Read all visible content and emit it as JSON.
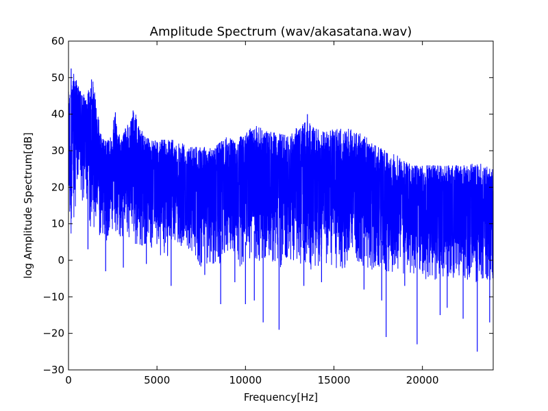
{
  "chart_data": {
    "type": "line",
    "title": "Amplitude Spectrum (wav/akasatana.wav)",
    "xlabel": "Frequency[Hz]",
    "ylabel": "log Amplitude Spectrum[dB]",
    "xlim": [
      0,
      24000
    ],
    "ylim": [
      -30,
      60
    ],
    "x_ticks": [
      0,
      5000,
      10000,
      15000,
      20000
    ],
    "x_tick_labels": [
      "0",
      "5000",
      "10000",
      "15000",
      "20000"
    ],
    "y_ticks": [
      -30,
      -20,
      -10,
      0,
      10,
      20,
      30,
      40,
      50,
      60
    ],
    "y_tick_labels": [
      "−30",
      "−20",
      "−10",
      "0",
      "10",
      "20",
      "30",
      "40",
      "50",
      "60"
    ],
    "grid": false,
    "legend": "none",
    "series": [
      {
        "color": "#0000ff",
        "envelope": {
          "x": [
            0,
            200,
            400,
            600,
            800,
            1000,
            1200,
            1400,
            1600,
            1800,
            2000,
            2200,
            2400,
            2600,
            2800,
            3000,
            3200,
            3400,
            3600,
            3800,
            4000,
            4500,
            5000,
            5500,
            6000,
            6500,
            7000,
            7500,
            8000,
            8500,
            9000,
            9500,
            10000,
            10500,
            11000,
            11500,
            12000,
            12500,
            13000,
            13500,
            14000,
            14500,
            15000,
            15500,
            16000,
            16500,
            17000,
            17500,
            18000,
            18500,
            19000,
            19500,
            20000,
            20500,
            21000,
            21500,
            22000,
            22500,
            23000,
            23500,
            24000
          ],
          "upper": [
            46,
            52,
            50,
            47,
            46,
            44,
            48,
            49,
            42,
            36,
            33,
            33,
            34,
            40,
            36,
            33,
            36,
            38,
            41,
            40,
            36,
            34,
            33,
            33,
            33,
            32,
            31,
            31,
            31,
            32,
            34,
            33,
            35,
            37,
            36,
            35,
            35,
            34,
            37,
            38,
            36,
            35,
            36,
            36,
            36,
            35,
            33,
            31,
            30,
            29,
            27,
            26,
            26,
            26,
            26,
            26,
            26,
            26,
            27,
            26,
            25
          ],
          "lower": [
            4,
            8,
            15,
            20,
            16,
            18,
            10,
            6,
            11,
            5,
            8,
            2,
            10,
            4,
            6,
            6,
            7,
            6,
            9,
            2,
            4,
            4,
            2,
            0,
            4,
            2,
            1,
            -2,
            -1,
            -2,
            2,
            -1,
            -3,
            0,
            -1,
            -1,
            -2,
            0,
            -2,
            -3,
            -2,
            -1,
            -2,
            -3,
            0,
            -1,
            -3,
            -2,
            -4,
            -3,
            -4,
            -4,
            -5,
            -6,
            -5,
            -5,
            -5,
            -6,
            -6,
            -6,
            -6
          ]
        },
        "spikes": [
          {
            "x": 1100,
            "y": 3
          },
          {
            "x": 2100,
            "y": -3
          },
          {
            "x": 3100,
            "y": -2
          },
          {
            "x": 4400,
            "y": -1
          },
          {
            "x": 5800,
            "y": -7
          },
          {
            "x": 7700,
            "y": -4
          },
          {
            "x": 8600,
            "y": -12
          },
          {
            "x": 9400,
            "y": -6
          },
          {
            "x": 10000,
            "y": -12
          },
          {
            "x": 10500,
            "y": -11
          },
          {
            "x": 11000,
            "y": -17
          },
          {
            "x": 11900,
            "y": -19
          },
          {
            "x": 13300,
            "y": -7
          },
          {
            "x": 14300,
            "y": -6
          },
          {
            "x": 16700,
            "y": -8
          },
          {
            "x": 17700,
            "y": -11
          },
          {
            "x": 17950,
            "y": -21
          },
          {
            "x": 19000,
            "y": -7
          },
          {
            "x": 19700,
            "y": -23
          },
          {
            "x": 21000,
            "y": -15
          },
          {
            "x": 21400,
            "y": -13
          },
          {
            "x": 22300,
            "y": -16
          },
          {
            "x": 23100,
            "y": -25
          },
          {
            "x": 23800,
            "y": -17
          }
        ],
        "peaks": [
          {
            "x": 150,
            "y": 52.5
          },
          {
            "x": 1300,
            "y": 49.5
          },
          {
            "x": 2650,
            "y": 40.5
          },
          {
            "x": 3650,
            "y": 41
          },
          {
            "x": 13500,
            "y": 40
          }
        ]
      }
    ]
  }
}
